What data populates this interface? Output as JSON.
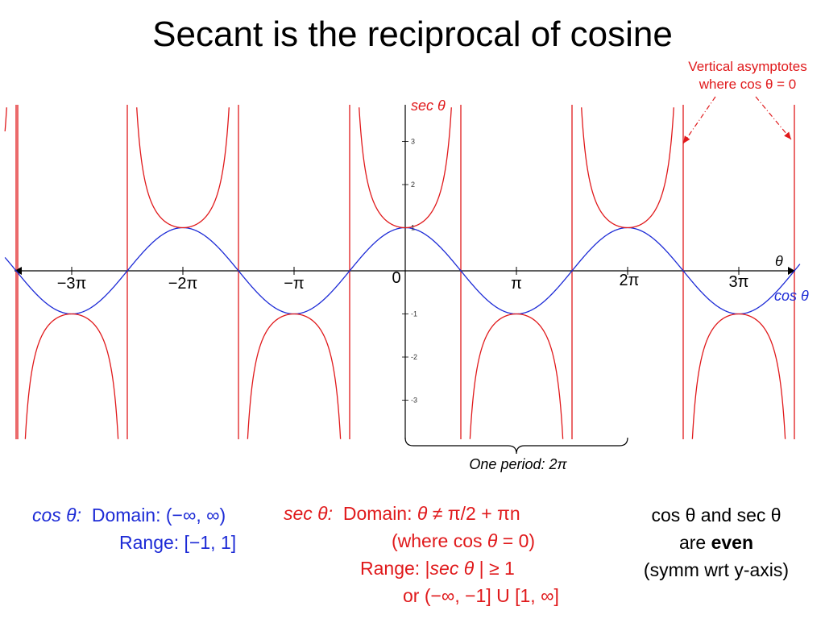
{
  "title": "Secant is the reciprocal of cosine",
  "annotation": {
    "line1": "Vertical asymptotes",
    "line2": "where cos θ = 0"
  },
  "chart_data": {
    "type": "line",
    "x_domain": [
      -3.6,
      3.55
    ],
    "y_limits": [
      -4.0,
      3.8
    ],
    "x_ticks": [
      {
        "value": -3,
        "label": "−3π"
      },
      {
        "value": -2,
        "label": "−2π"
      },
      {
        "value": -1,
        "label": "−π"
      },
      {
        "value": 0,
        "label": "0"
      },
      {
        "value": 1,
        "label": "π"
      },
      {
        "value": 2,
        "label": "2π"
      },
      {
        "value": 3,
        "label": "3π"
      }
    ],
    "y_ticks": [
      {
        "value": 3,
        "label": "3"
      },
      {
        "value": 2,
        "label": "2"
      },
      {
        "value": 1,
        "label": "1"
      },
      {
        "value": -1,
        "label": "-1"
      },
      {
        "value": -2,
        "label": "-2"
      },
      {
        "value": -3,
        "label": "-3"
      }
    ],
    "x_axis_label": "θ",
    "series": [
      {
        "name": "sec θ",
        "color": "#e0191b",
        "function": "sec",
        "note": "x values in multiples of π"
      },
      {
        "name": "cos θ",
        "color": "#1d2bd6",
        "function": "cos"
      }
    ],
    "asymptotes": [
      -3.5,
      -2.5,
      -1.5,
      -0.5,
      0.5,
      1.5,
      2.5,
      3.5
    ],
    "period_brace": {
      "from": 0,
      "to": 2,
      "label": "One period: 2π"
    }
  },
  "cos_info": {
    "label": "cos θ:",
    "domain": "Domain: (−∞, ∞)",
    "range": "Range: [−1, 1]"
  },
  "sec_info": {
    "label": "sec θ:",
    "domain_pre": "Domain: ",
    "domain_theta": "θ",
    "domain_post": " ≠ π/2 + πn",
    "where_pre": "(where cos ",
    "where_theta": "θ",
    "where_post": " = 0)",
    "range_pre": "Range: |",
    "range_sec": "sec θ",
    "range_post": " | ≥ 1",
    "range_union": "or (−∞, −1] U [1, ∞]"
  },
  "even_info": {
    "cos": "cos θ",
    "and": " and ",
    "sec": "sec θ",
    "are": "are ",
    "even": "even",
    "symm": "(symm wrt y-axis)"
  }
}
